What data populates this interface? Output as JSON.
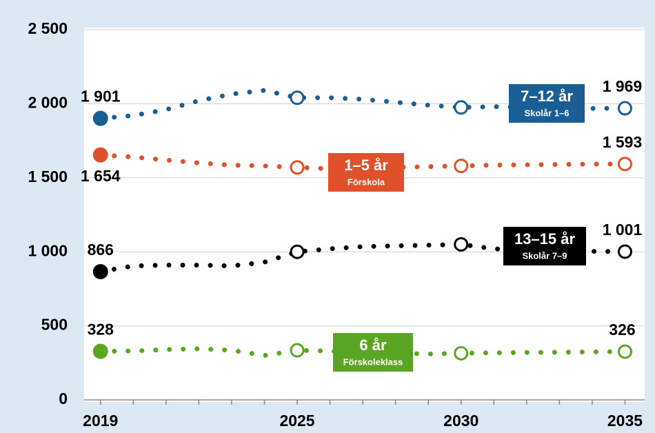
{
  "chart_data": {
    "type": "line",
    "x": [
      2019,
      2020,
      2021,
      2022,
      2023,
      2024,
      2025,
      2026,
      2027,
      2028,
      2029,
      2030,
      2031,
      2032,
      2033,
      2034,
      2035
    ],
    "series": [
      {
        "name": "7–12 år",
        "sublabel": "Skolår 1–6",
        "color": "#1a5e96",
        "values": [
          1901,
          1920,
          1960,
          2020,
          2065,
          2090,
          2040,
          2040,
          2030,
          2010,
          1990,
          1975,
          1980,
          1975,
          1970,
          1968,
          1969
        ],
        "value_labels": [
          "1 901",
          null,
          null,
          null,
          null,
          null,
          null,
          null,
          null,
          null,
          null,
          null,
          null,
          null,
          null,
          null,
          "1 969"
        ]
      },
      {
        "name": "1–5 år",
        "sublabel": "Förskola",
        "color": "#e0502a",
        "values": [
          1654,
          1640,
          1620,
          1600,
          1585,
          1580,
          1570,
          1560,
          1565,
          1570,
          1575,
          1580,
          1585,
          1588,
          1590,
          1592,
          1593
        ],
        "value_labels": [
          "1 654",
          null,
          null,
          null,
          null,
          null,
          null,
          null,
          null,
          null,
          null,
          null,
          null,
          null,
          null,
          null,
          "1 593"
        ]
      },
      {
        "name": "13–15 år",
        "sublabel": "Skolår 7–9",
        "color": "#000000",
        "values": [
          866,
          905,
          910,
          910,
          905,
          930,
          1000,
          1020,
          1035,
          1040,
          1045,
          1050,
          1020,
          1010,
          1005,
          1003,
          1001
        ],
        "value_labels": [
          null,
          null,
          null,
          null,
          null,
          null,
          null,
          null,
          null,
          null,
          null,
          null,
          null,
          null,
          null,
          null,
          "1 001"
        ]
      },
      {
        "name": "6 år",
        "sublabel": "Förskoleklass",
        "color": "#5aa623",
        "values": [
          328,
          330,
          340,
          345,
          335,
          300,
          335,
          330,
          320,
          315,
          310,
          315,
          318,
          320,
          322,
          324,
          326
        ]
      }
    ],
    "xlim": [
      2018.5,
      2035.6
    ],
    "xticks": [
      2019,
      2025,
      2030,
      2035
    ],
    "ylim": [
      0,
      2500
    ],
    "yticks": [
      0,
      500,
      {
        "value": 1000,
        "label": "1 000"
      },
      {
        "value": 1500,
        "label": "1 500"
      },
      {
        "value": 2000,
        "label": "2 000"
      },
      {
        "value": 2500,
        "label": "2 500"
      }
    ],
    "grid": true
  }
}
